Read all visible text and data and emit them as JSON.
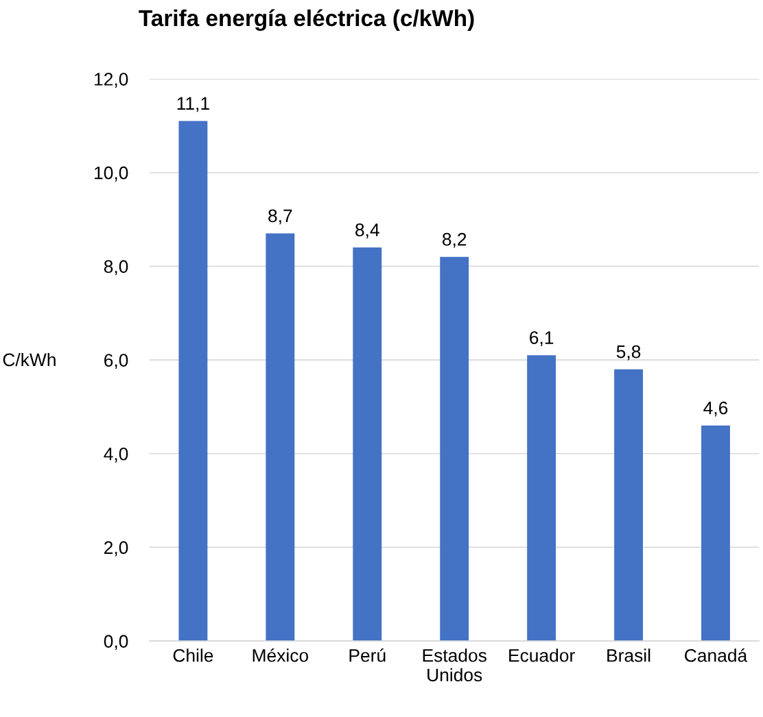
{
  "chart_data": {
    "type": "bar",
    "title": "Tarifa energía eléctrica (c/kWh)",
    "ylabel": "C/kWh",
    "categories": [
      "Chile",
      "México",
      "Perú",
      "Estados Unidos",
      "Ecuador",
      "Brasil",
      "Canadá"
    ],
    "values": [
      11.1,
      8.7,
      8.4,
      8.2,
      6.1,
      5.8,
      4.6
    ],
    "value_labels": [
      "11,1",
      "8,7",
      "8,4",
      "8,2",
      "6,1",
      "5,8",
      "4,6"
    ],
    "color": "#4472c4",
    "ylim": [
      0,
      12
    ],
    "yticks": [
      {
        "value": 0,
        "label": "0,0"
      },
      {
        "value": 2,
        "label": "2,0"
      },
      {
        "value": 4,
        "label": "4,0"
      },
      {
        "value": 6,
        "label": "6,0"
      },
      {
        "value": 8,
        "label": "8,0"
      },
      {
        "value": 10,
        "label": "10,0"
      },
      {
        "value": 12,
        "label": "12,0"
      }
    ],
    "grid": "y"
  }
}
